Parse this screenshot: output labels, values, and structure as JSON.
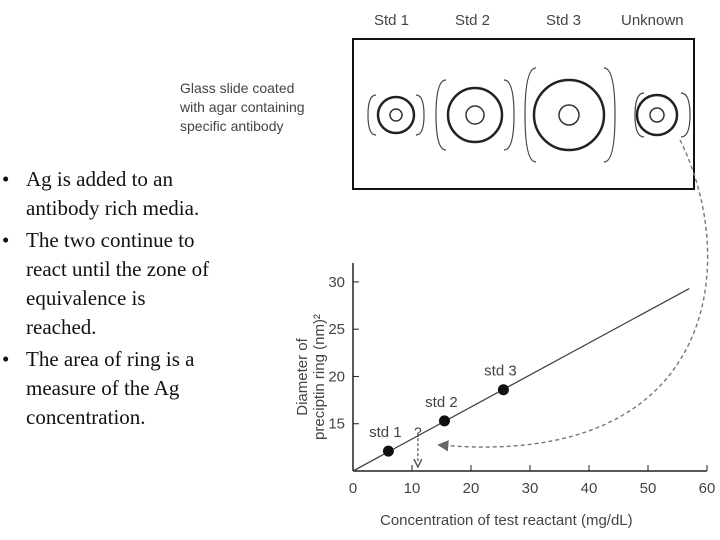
{
  "headers": {
    "std1": "Std 1",
    "std2": "Std 2",
    "std3": "Std 3",
    "unknown": "Unknown"
  },
  "slide_description": [
    "Glass slide coated",
    "with agar containing",
    "specific antibody"
  ],
  "bullets": [
    {
      "lines": [
        "Ag is added to an",
        "antibody rich media."
      ]
    },
    {
      "lines": [
        "The two continue to",
        "react until the zone of",
        "equivalence is",
        "reached."
      ]
    },
    {
      "lines": [
        " The area of ring is a",
        "measure of the Ag",
        "concentration."
      ]
    }
  ],
  "bullet_symbol": "•",
  "chart_data": {
    "type": "scatter",
    "xlabel": "Concentration of test reactant (mg/dL)",
    "ylabel_lines": [
      "Diameter of",
      "preciptin ring (nm)²"
    ],
    "xlim": [
      0,
      60
    ],
    "ylim": [
      10,
      32
    ],
    "x_ticks": [
      "0",
      "10",
      "20",
      "30",
      "40",
      "50",
      "60"
    ],
    "y_ticks": [
      "15",
      "20",
      "25",
      "30"
    ],
    "points": [
      {
        "label": "std 1",
        "x": 6,
        "y": 12.1
      },
      {
        "label": "std 2",
        "x": 15.5,
        "y": 15.3
      },
      {
        "label": "std 3",
        "x": 25.5,
        "y": 18.6
      }
    ],
    "unknown_marker": {
      "label": "?",
      "x": 11,
      "y": 14
    },
    "fit_line": [
      {
        "x": 0,
        "y": 10
      },
      {
        "x": 57,
        "y": 29.3
      }
    ]
  }
}
